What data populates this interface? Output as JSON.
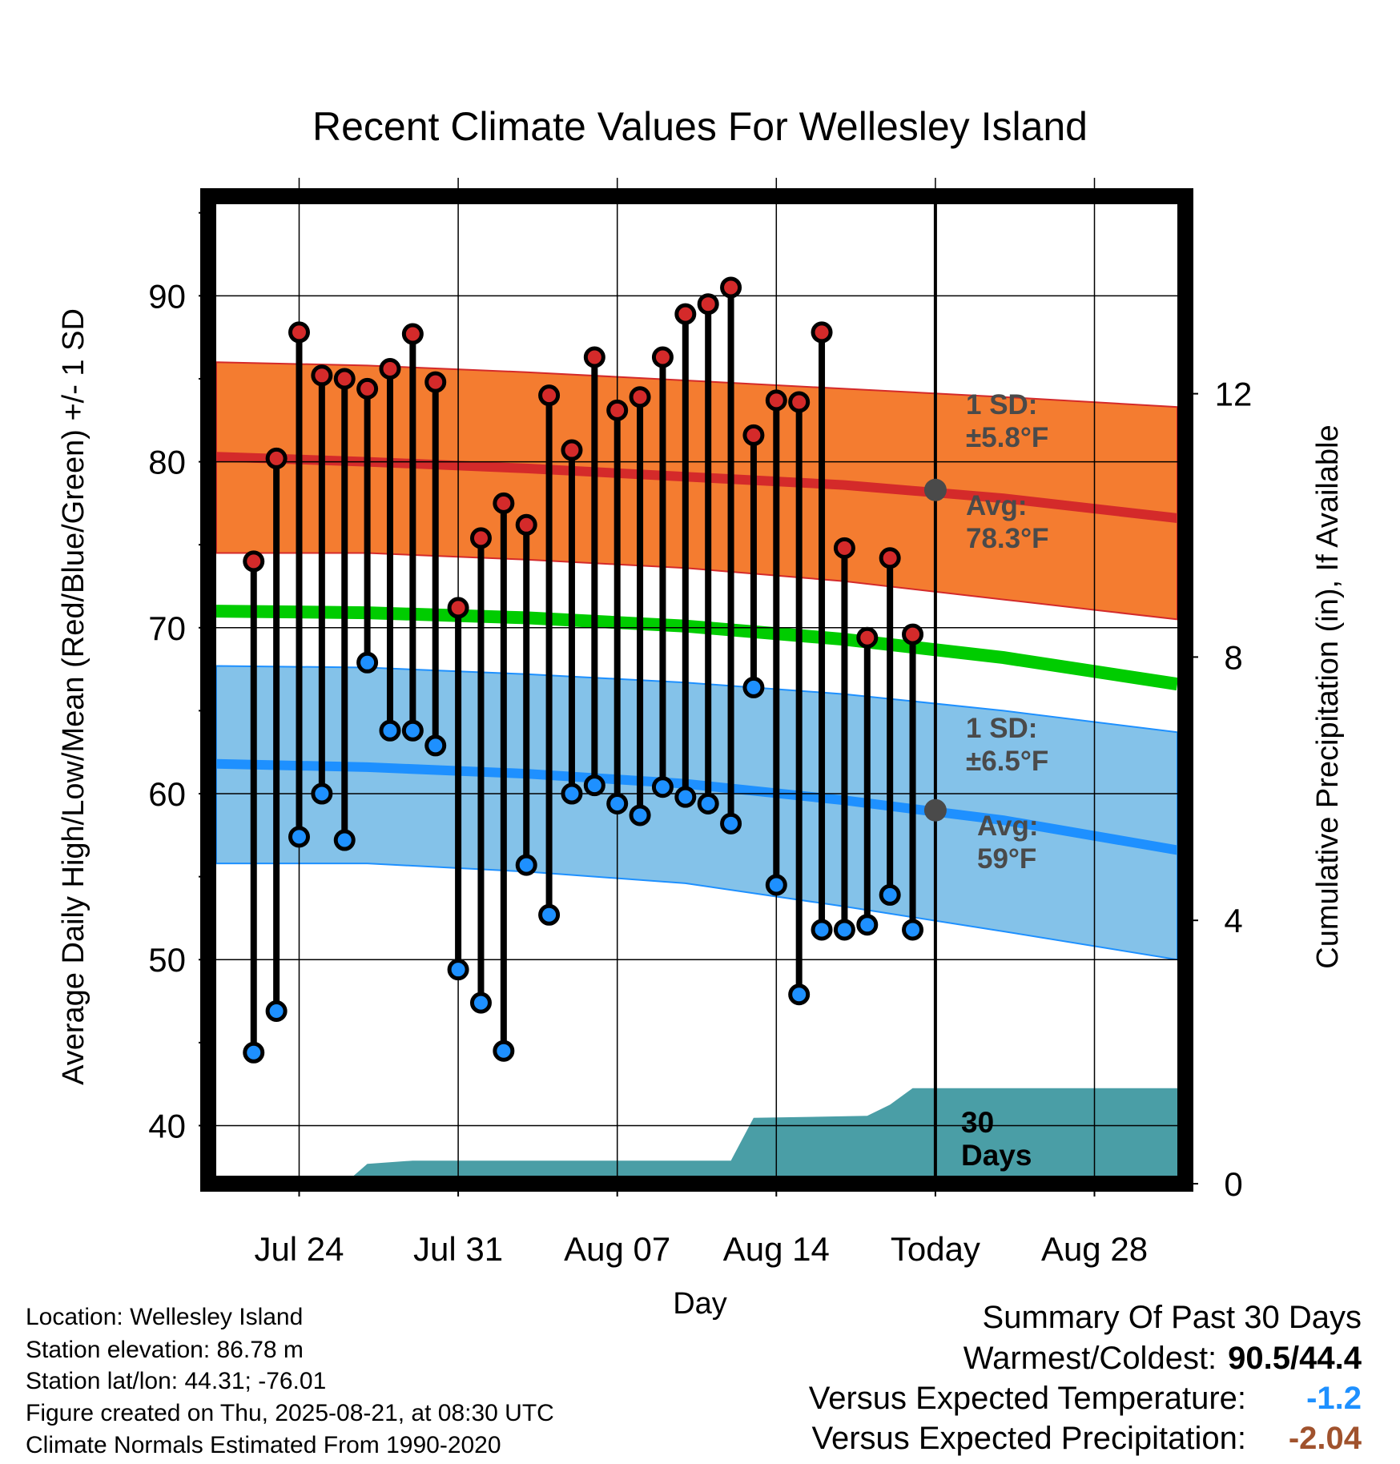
{
  "chart_data": {
    "type": "line",
    "title": "Recent Climate Values For Wellesley Island",
    "xlabel": "Day",
    "ylabel": "Average Daily High/Low/Mean (Red/Blue/Green) +/- 1 SD",
    "y2label": "Cumulative Precipitation (in), If Available",
    "ylim": [
      36.5,
      96
    ],
    "y2lim": [
      0,
      15
    ],
    "y_ticks": [
      "40",
      "50",
      "60",
      "70",
      "80",
      "90"
    ],
    "y2_ticks": [
      "0",
      "4",
      "8",
      "12"
    ],
    "x_tick_labels": [
      "Jul 24",
      "Jul 31",
      "Aug 07",
      "Aug 14",
      "Today",
      "Aug 28"
    ],
    "x_tick_dates": [
      "2025-07-24",
      "2025-07-31",
      "2025-08-07",
      "2025-08-14",
      "2025-08-21",
      "2025-08-28"
    ],
    "xlim": [
      "2025-07-20",
      "2025-09-01"
    ],
    "today": "2025-08-21",
    "grid": true,
    "dates": [
      "2025-07-22",
      "2025-07-23",
      "2025-07-24",
      "2025-07-25",
      "2025-07-26",
      "2025-07-27",
      "2025-07-28",
      "2025-07-29",
      "2025-07-30",
      "2025-07-31",
      "2025-08-01",
      "2025-08-02",
      "2025-08-03",
      "2025-08-04",
      "2025-08-05",
      "2025-08-06",
      "2025-08-07",
      "2025-08-08",
      "2025-08-09",
      "2025-08-10",
      "2025-08-11",
      "2025-08-12",
      "2025-08-13",
      "2025-08-14",
      "2025-08-15",
      "2025-08-16",
      "2025-08-17",
      "2025-08-18",
      "2025-08-19",
      "2025-08-20"
    ],
    "highs": [
      74.0,
      80.2,
      87.8,
      85.2,
      85.0,
      84.4,
      85.6,
      87.7,
      84.8,
      71.2,
      75.4,
      77.5,
      76.2,
      84.0,
      80.7,
      86.3,
      83.1,
      83.9,
      86.3,
      88.9,
      89.5,
      90.5,
      81.6,
      83.7,
      83.6,
      87.8,
      74.8,
      69.4,
      74.2,
      69.6
    ],
    "lows": [
      44.4,
      46.9,
      57.4,
      60.0,
      57.2,
      67.9,
      63.8,
      63.8,
      62.9,
      49.4,
      47.4,
      44.5,
      55.7,
      52.7,
      60.0,
      60.5,
      59.4,
      58.7,
      60.4,
      59.8,
      59.4,
      58.2,
      66.4,
      54.5,
      47.9,
      51.8,
      51.8,
      52.1,
      53.9,
      51.8
    ],
    "normals": {
      "dates": [
        "2025-07-20",
        "2025-07-27",
        "2025-08-03",
        "2025-08-10",
        "2025-08-17",
        "2025-08-24",
        "2025-09-01"
      ],
      "high_avg": [
        80.3,
        80.0,
        79.6,
        79.1,
        78.6,
        77.8,
        76.6
      ],
      "low_avg": [
        61.8,
        61.6,
        61.2,
        60.6,
        59.6,
        58.4,
        56.6
      ],
      "mean_avg": [
        71.0,
        70.9,
        70.6,
        70.1,
        69.3,
        68.2,
        66.6
      ],
      "high_upper": [
        86.0,
        85.8,
        85.4,
        84.9,
        84.4,
        83.9,
        83.3
      ],
      "high_lower": [
        74.5,
        74.5,
        74.1,
        73.6,
        72.8,
        71.7,
        70.5
      ],
      "low_upper": [
        67.7,
        67.6,
        67.2,
        66.7,
        66.0,
        65.0,
        63.7
      ],
      "low_lower": [
        55.8,
        55.8,
        55.3,
        54.6,
        53.2,
        51.7,
        50.0
      ]
    },
    "precip": {
      "dates": [
        "2025-07-20",
        "2025-07-26",
        "2025-07-27",
        "2025-07-29",
        "2025-08-11",
        "2025-08-12",
        "2025-08-13",
        "2025-08-18",
        "2025-08-19",
        "2025-08-20",
        "2025-08-21",
        "2025-09-01"
      ],
      "cumulative": [
        0.0,
        0.0,
        0.3,
        0.35,
        0.35,
        0.35,
        1.0,
        1.03,
        1.2,
        1.45,
        1.45,
        1.45
      ]
    },
    "annotations": {
      "high_sd_label": "1 SD:",
      "high_sd_value": "±5.8°F",
      "high_avg_label": "Avg:",
      "high_avg_value": "78.3°F",
      "low_sd_label": "1 SD:",
      "low_sd_value": "±6.5°F",
      "low_avg_label": "Avg:",
      "low_avg_value": "59°F",
      "period_number": "30",
      "period_unit": "Days",
      "today_high_avg": 78.3,
      "today_low_avg": 59.0
    },
    "colors": {
      "high_band": "#f47c30",
      "high_line": "#d42a2a",
      "low_band": "#84c2e9",
      "low_line": "#1e90ff",
      "mean_line": "#00cc00",
      "precip_fill": "#4a9ea6",
      "high_marker": "#d42a2a",
      "low_marker": "#1e90ff",
      "today_marker": "#4a4a4a"
    }
  },
  "info": {
    "location": "Location: Wellesley Island",
    "elevation": "Station elevation: 86.78 m",
    "latlon": "Station lat/lon: 44.31; -76.01",
    "created": "Figure created on Thu, 2025-08-21, at 08:30 UTC",
    "normals": "Climate Normals Estimated From 1990-2020"
  },
  "summary": {
    "title": "Summary Of Past 30 Days",
    "warmest_label": "Warmest/Coldest:",
    "warmest_value": "90.5/44.4",
    "temp_label": "Versus Expected Temperature:",
    "temp_value": "-1.2",
    "temp_color": "#1e90ff",
    "precip_label": "Versus Expected Precipitation:",
    "precip_value": "-2.04",
    "precip_color": "#a0522d"
  }
}
